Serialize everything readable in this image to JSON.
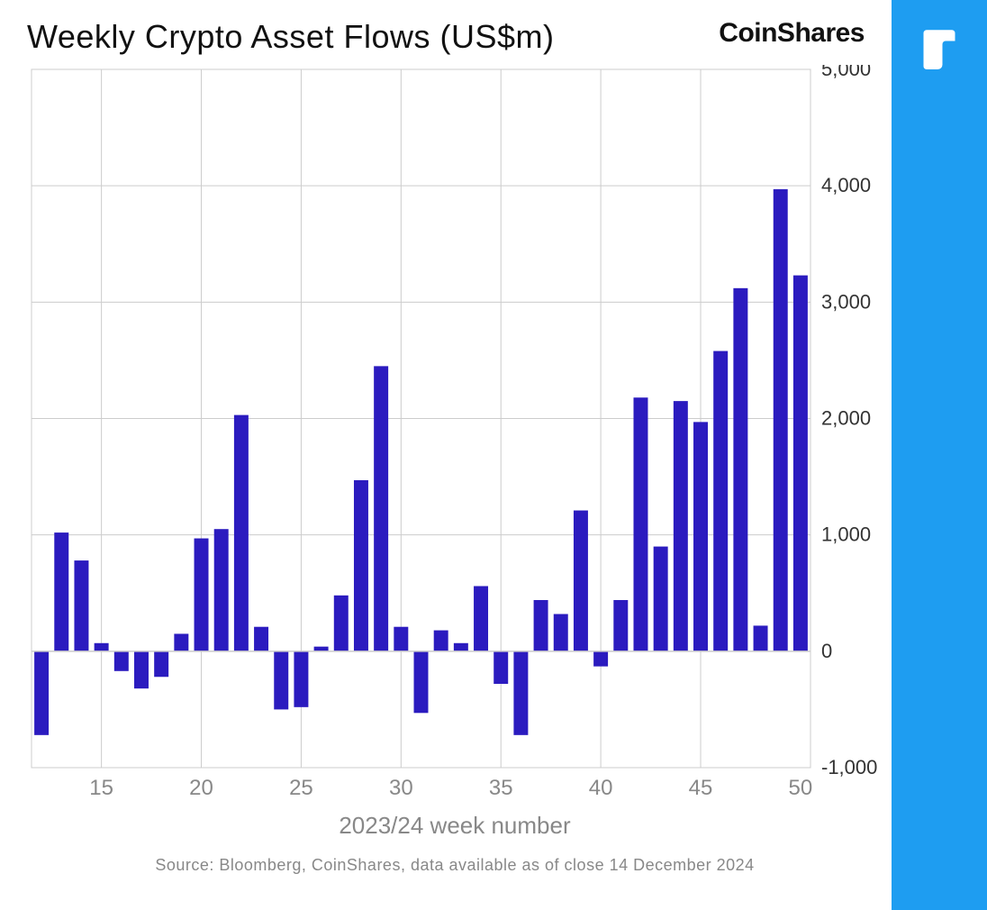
{
  "title": "Weekly Crypto Asset Flows (US$m)",
  "brand": "CoinShares",
  "x_axis_title": "2023/24 week number",
  "source": "Source: Bloomberg, CoinShares, data available as of close 14 December 2024",
  "chart": {
    "type": "bar",
    "bar_color": "#2b1bbf",
    "background_color": "#ffffff",
    "grid_color": "#cccccc",
    "axis_color": "#333333",
    "tick_font_color_y": "#333333",
    "tick_font_color_x": "#888888",
    "title_fontsize": 36,
    "ytick_fontsize": 22,
    "xtick_fontsize": 24,
    "ylim": [
      -1000,
      5000
    ],
    "ytick_step": 1000,
    "y_ticks": [
      -1000,
      0,
      1000,
      2000,
      3000,
      4000,
      5000
    ],
    "x_ticks": [
      15,
      20,
      25,
      30,
      35,
      40,
      45,
      50
    ],
    "x_grid_at": [
      15,
      20,
      25,
      30,
      35,
      40,
      45
    ],
    "week_start": 12,
    "week_end": 50,
    "bar_width_ratio": 0.72,
    "values": [
      -720,
      1020,
      780,
      70,
      -170,
      -320,
      -220,
      150,
      970,
      1050,
      2030,
      210,
      -500,
      -480,
      40,
      480,
      1470,
      2450,
      210,
      -530,
      180,
      70,
      560,
      -280,
      -720,
      440,
      320,
      1210,
      -130,
      440,
      2180,
      900,
      2150,
      1970,
      2580,
      3120,
      220,
      3970,
      3230
    ]
  },
  "side_panel_color": "#1e9df1",
  "logo_color": "#ffffff"
}
